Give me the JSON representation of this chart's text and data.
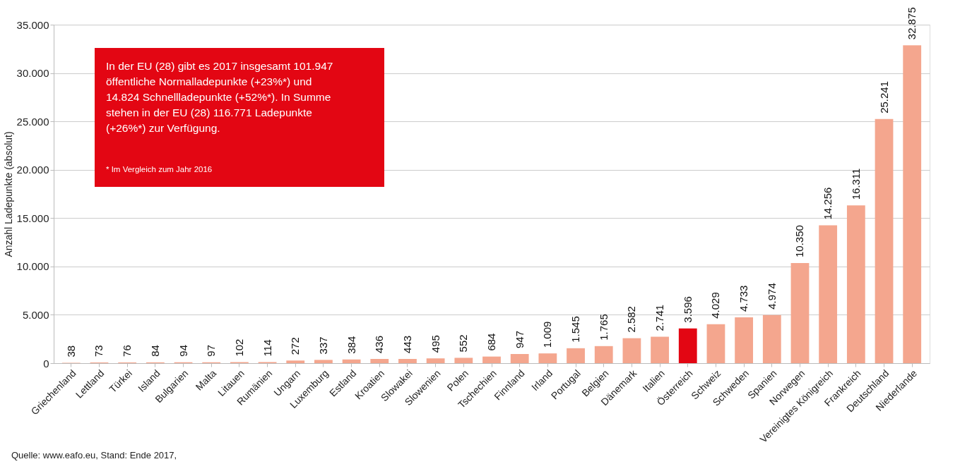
{
  "chart_data": {
    "type": "bar",
    "ylabel": "Anzahl Ladepunkte (absolut)",
    "categories": [
      "Griechenland",
      "Lettland",
      "Türkei",
      "Island",
      "Bulgarien",
      "Malta",
      "Litauen",
      "Rumänien",
      "Ungarn",
      "Luxemburg",
      "Estland",
      "Kroatien",
      "Slowakei",
      "Slowenien",
      "Polen",
      "Tschechien",
      "Finnland",
      "Irland",
      "Portugal",
      "Belgien",
      "Dänemark",
      "Italien",
      "Österreich",
      "Schweiz",
      "Schweden",
      "Spanien",
      "Norwegen",
      "Vereinigtes Königreich",
      "Frankreich",
      "Deutschland",
      "Niederlande"
    ],
    "values": [
      38,
      73,
      76,
      84,
      94,
      97,
      102,
      114,
      272,
      337,
      384,
      436,
      443,
      495,
      552,
      684,
      947,
      1009,
      1545,
      1765,
      2582,
      2741,
      3596,
      4029,
      4733,
      4974,
      10350,
      14256,
      16311,
      25241,
      32875
    ],
    "value_labels": [
      "38",
      "73",
      "76",
      "84",
      "94",
      "97",
      "102",
      "114",
      "272",
      "337",
      "384",
      "436",
      "443",
      "495",
      "552",
      "684",
      "947",
      "1.009",
      "1.545",
      "1.765",
      "2.582",
      "2.741",
      "3.596",
      "4.029",
      "4.733",
      "4.974",
      "10.350",
      "14.256",
      "16.311",
      "25.241",
      "32.875"
    ],
    "colors": [
      "#f4a68e",
      "#f4a68e",
      "#f4a68e",
      "#f4a68e",
      "#f4a68e",
      "#f4a68e",
      "#f4a68e",
      "#f4a68e",
      "#f4a68e",
      "#f4a68e",
      "#f4a68e",
      "#f4a68e",
      "#f4a68e",
      "#f4a68e",
      "#f4a68e",
      "#f4a68e",
      "#f4a68e",
      "#f4a68e",
      "#f4a68e",
      "#f4a68e",
      "#f4a68e",
      "#f4a68e",
      "#e30613",
      "#f4a68e",
      "#f4a68e",
      "#f4a68e",
      "#f4a68e",
      "#f4a68e",
      "#f4a68e",
      "#f4a68e",
      "#f4a68e"
    ],
    "ylim": [
      0,
      35000
    ],
    "yticks": [
      {
        "value": 0,
        "label": "0"
      },
      {
        "value": 5000,
        "label": "5.000"
      },
      {
        "value": 10000,
        "label": "10.000"
      },
      {
        "value": 15000,
        "label": "15.000"
      },
      {
        "value": 20000,
        "label": "20.000"
      },
      {
        "value": 25000,
        "label": "25.000"
      },
      {
        "value": 30000,
        "label": "30.000"
      },
      {
        "value": 35000,
        "label": "35.000"
      }
    ],
    "grid": "y",
    "annotations": [
      "In der EU (28) gibt es 2017 insgesamt 101.947\nöffentliche Normalladepunkte (+23%*)  und\n14.824 Schnellladepunkte (+52%*). In Summe\nstehen in der EU (28) 116.771 Ladepunkte\n(+26%*) zur Verfügung.",
      "* Im Vergleich zum Jahr 2016",
      "Quelle: www.eafo.eu, Stand: Ende 2017,"
    ]
  }
}
